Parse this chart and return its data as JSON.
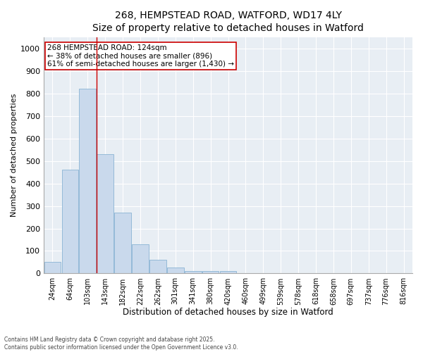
{
  "title": "268, HEMPSTEAD ROAD, WATFORD, WD17 4LY",
  "subtitle": "Size of property relative to detached houses in Watford",
  "xlabel": "Distribution of detached houses by size in Watford",
  "ylabel": "Number of detached properties",
  "categories": [
    "24sqm",
    "64sqm",
    "103sqm",
    "143sqm",
    "182sqm",
    "222sqm",
    "262sqm",
    "301sqm",
    "341sqm",
    "380sqm",
    "420sqm",
    "460sqm",
    "499sqm",
    "539sqm",
    "578sqm",
    "618sqm",
    "658sqm",
    "697sqm",
    "737sqm",
    "776sqm",
    "816sqm"
  ],
  "values": [
    50,
    460,
    820,
    530,
    270,
    130,
    60,
    25,
    10,
    12,
    10,
    3,
    2,
    2,
    1,
    1,
    1,
    0,
    0,
    0,
    0
  ],
  "bar_color": "#c9d9ec",
  "bar_edge_color": "#8ab4d4",
  "vline_color": "#cc0000",
  "annotation_text": "268 HEMPSTEAD ROAD: 124sqm\n← 38% of detached houses are smaller (896)\n61% of semi-detached houses are larger (1,430) →",
  "annotation_box_color": "#ffffff",
  "annotation_box_edge_color": "#cc0000",
  "ylim": [
    0,
    1050
  ],
  "yticks": [
    0,
    100,
    200,
    300,
    400,
    500,
    600,
    700,
    800,
    900,
    1000
  ],
  "background_color": "#e8eef4",
  "footer": "Contains HM Land Registry data © Crown copyright and database right 2025.\nContains public sector information licensed under the Open Government Licence v3.0.",
  "title_fontsize": 10,
  "xlabel_fontsize": 8.5,
  "ylabel_fontsize": 8
}
